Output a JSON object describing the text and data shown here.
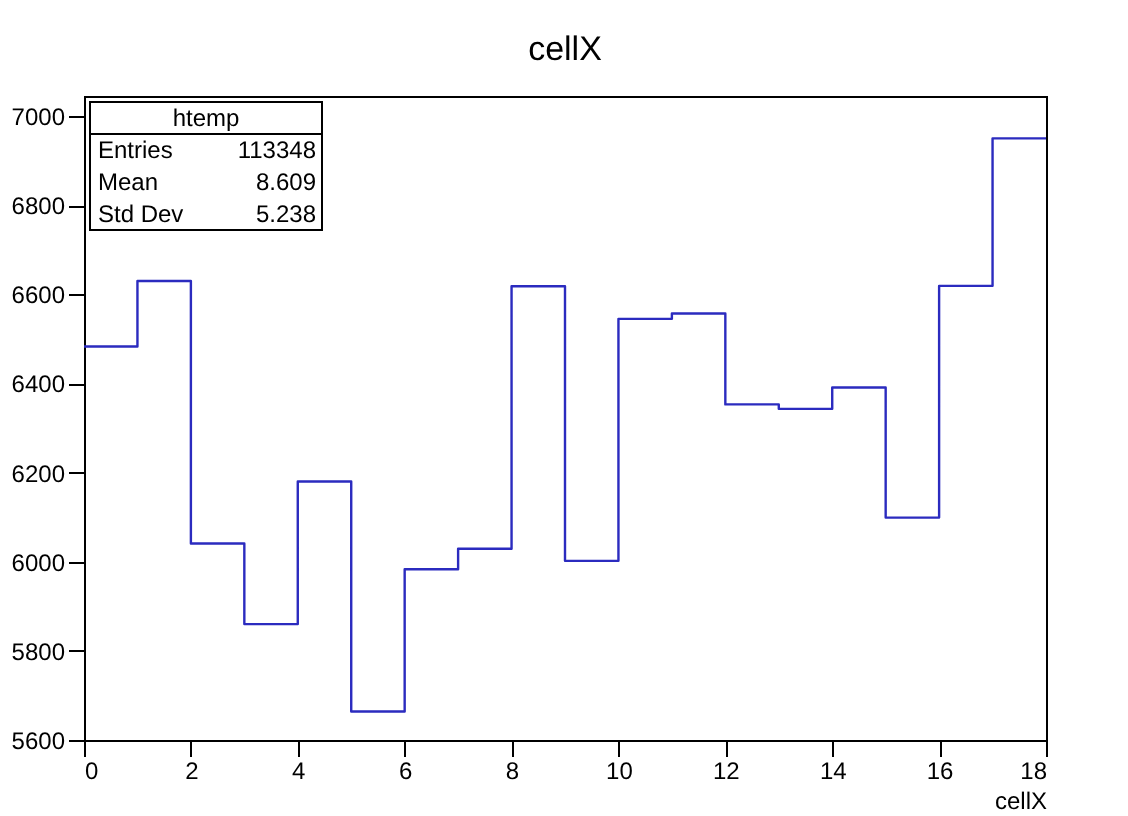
{
  "chart_data": {
    "type": "histogram",
    "title": "cellX",
    "xlabel": "cellX",
    "bins": [
      0,
      1,
      2,
      3,
      4,
      5,
      6,
      7,
      8,
      9,
      10,
      11,
      12,
      13,
      14,
      15,
      16,
      17,
      18
    ],
    "values": [
      6483,
      6630,
      6041,
      5860,
      6180,
      5664,
      5983,
      6029,
      6618,
      6002,
      6545,
      6557,
      6353,
      6343,
      6391,
      6099,
      6619,
      6950
    ],
    "color": "#2b2bbf",
    "xlim": [
      0,
      18
    ],
    "xticks": [
      0,
      2,
      4,
      6,
      8,
      10,
      12,
      14,
      16,
      18
    ],
    "ylim": [
      5600,
      7045
    ],
    "yticks": [
      5600,
      5800,
      6000,
      6200,
      6400,
      6600,
      6800,
      7000
    ],
    "grid": false,
    "annotations": [
      "htemp",
      "Entries",
      "113348",
      "Mean",
      "8.609",
      "Std Dev",
      "5.238"
    ]
  }
}
